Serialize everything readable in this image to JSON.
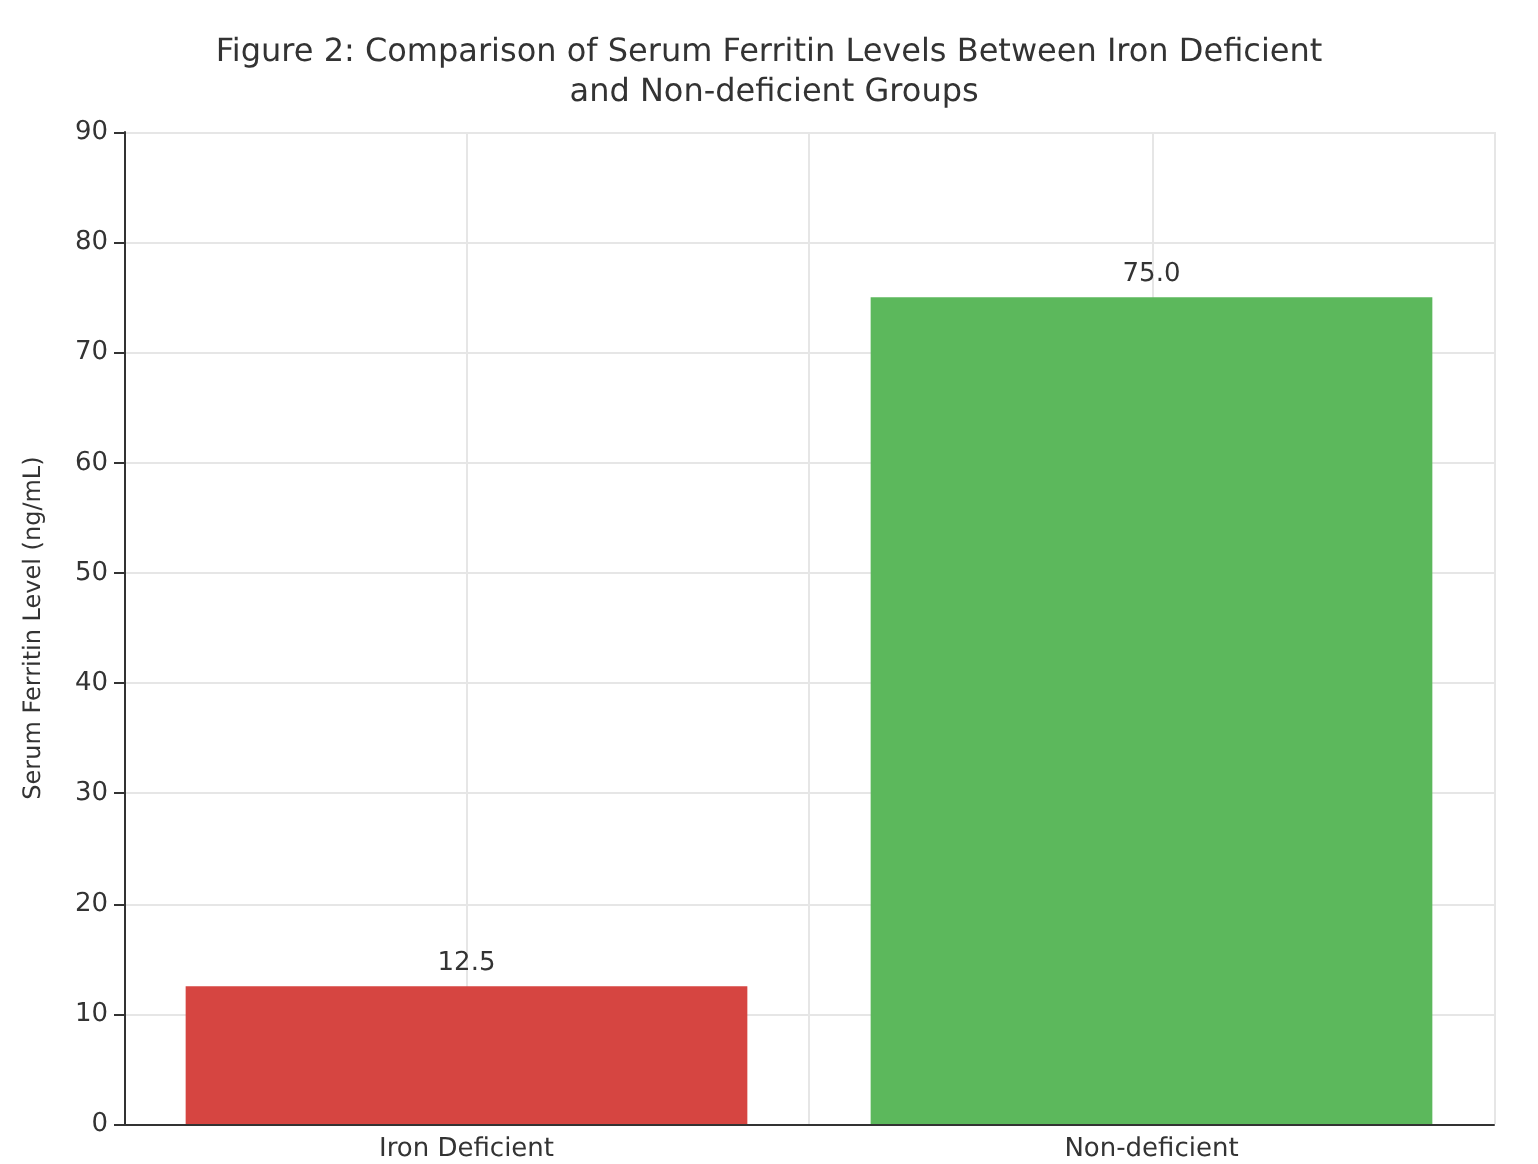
{
  "chart_data": {
    "type": "bar",
    "title": "Figure 2: Comparison of Serum Ferritin Levels Between Iron Deficient and Non-deficient Groups",
    "ylabel": "Serum Ferritin Level (ng/mL)",
    "categories": [
      "Iron Deficient",
      "Non-deficient"
    ],
    "values": [
      12.5,
      75.0
    ],
    "colors": [
      "#d64541",
      "#5cb85c"
    ],
    "value_labels": [
      "12.5",
      "75.0"
    ],
    "ylim": [
      0,
      90
    ],
    "yticks": [
      0,
      10,
      20,
      30,
      40,
      50,
      60,
      70,
      80,
      90
    ],
    "grid": true
  }
}
